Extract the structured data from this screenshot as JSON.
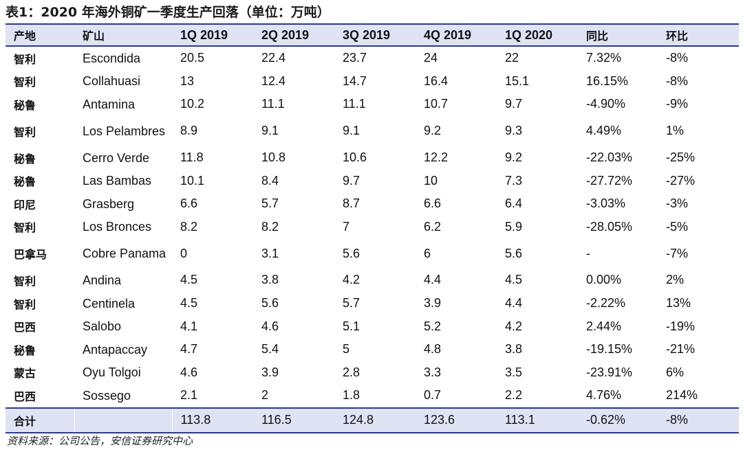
{
  "title": "表1：2020 年海外铜矿一季度生产回落（单位：万吨）",
  "table": {
    "headers": [
      "产地",
      "矿山",
      "1Q 2019",
      "2Q 2019",
      "3Q 2019",
      "4Q 2019",
      "1Q 2020",
      "同比",
      "环比"
    ],
    "rows": [
      [
        "智利",
        "Escondida",
        "20.5",
        "22.4",
        "23.7",
        "24",
        "22",
        "7.32%",
        "-8%"
      ],
      [
        "智利",
        "Collahuasi",
        "13",
        "12.4",
        "14.7",
        "16.4",
        "15.1",
        "16.15%",
        "-8%"
      ],
      [
        "秘鲁",
        "Antamina",
        "10.2",
        "11.1",
        "11.1",
        "10.7",
        "9.7",
        "-4.90%",
        "-9%"
      ],
      [
        "智利",
        "Los Pelambres",
        "8.9",
        "9.1",
        "9.1",
        "9.2",
        "9.3",
        "4.49%",
        "1%"
      ],
      [
        "秘鲁",
        "Cerro Verde",
        "11.8",
        "10.8",
        "10.6",
        "12.2",
        "9.2",
        "-22.03%",
        "-25%"
      ],
      [
        "秘鲁",
        "Las Bambas",
        "10.1",
        "8.4",
        "9.7",
        "10",
        "7.3",
        "-27.72%",
        "-27%"
      ],
      [
        "印尼",
        "Grasberg",
        "6.6",
        "5.7",
        "8.7",
        "6.6",
        "6.4",
        "-3.03%",
        "-3%"
      ],
      [
        "智利",
        "Los Bronces",
        "8.2",
        "8.2",
        "7",
        "6.2",
        "5.9",
        "-28.05%",
        "-5%"
      ],
      [
        "巴拿马",
        "Cobre Panama",
        "0",
        "3.1",
        "5.6",
        "6",
        "5.6",
        "-",
        "-7%"
      ],
      [
        "智利",
        "Andina",
        "4.5",
        "3.8",
        "4.2",
        "4.4",
        "4.5",
        "0.00%",
        "2%"
      ],
      [
        "智利",
        "Centinela",
        "4.5",
        "5.6",
        "5.7",
        "3.9",
        "4.4",
        "-2.22%",
        "13%"
      ],
      [
        "巴西",
        "Salobo",
        "4.1",
        "4.6",
        "5.1",
        "5.2",
        "4.2",
        "2.44%",
        "-19%"
      ],
      [
        "秘鲁",
        "Antapaccay",
        "4.7",
        "5.4",
        "5",
        "4.8",
        "3.8",
        "-19.15%",
        "-21%"
      ],
      [
        "蒙古",
        "Oyu Tolgoi",
        "4.6",
        "3.9",
        "2.8",
        "3.3",
        "3.5",
        "-23.91%",
        "6%"
      ],
      [
        "巴西",
        "Sossego",
        "2.1",
        "2",
        "1.8",
        "0.7",
        "2.2",
        "4.76%",
        "214%"
      ]
    ],
    "total": [
      "合计",
      "",
      "113.8",
      "116.5",
      "124.8",
      "123.6",
      "113.1",
      "-0.62%",
      "-8%"
    ]
  },
  "source": "资料来源：公司公告，安信证券研究中心"
}
